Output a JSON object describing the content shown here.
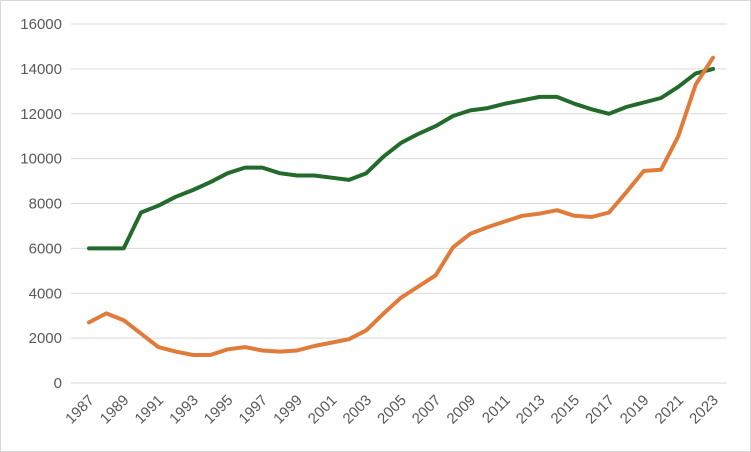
{
  "chart_data": {
    "type": "line",
    "title": "",
    "xlabel": "",
    "ylabel": "",
    "ylim": [
      0,
      16000
    ],
    "yticks": [
      "0",
      "2000",
      "4000",
      "6000",
      "8000",
      "10000",
      "12000",
      "14000",
      "16000"
    ],
    "grid": true,
    "legend": "none",
    "x": [
      1987,
      1988,
      1989,
      1990,
      1991,
      1992,
      1993,
      1994,
      1995,
      1996,
      1997,
      1998,
      1999,
      2000,
      2001,
      2002,
      2003,
      2004,
      2005,
      2006,
      2007,
      2008,
      2009,
      2010,
      2011,
      2012,
      2013,
      2014,
      2015,
      2016,
      2017,
      2018,
      2019,
      2020,
      2021,
      2022,
      2023
    ],
    "xticks": [
      "1987",
      "1989",
      "1991",
      "1993",
      "1995",
      "1997",
      "1999",
      "2001",
      "2003",
      "2005",
      "2007",
      "2009",
      "2011",
      "2013",
      "2015",
      "2017",
      "2019",
      "2021",
      "2023"
    ],
    "series": [
      {
        "name": "green series",
        "color": "#236b2b",
        "values": [
          6000,
          6000,
          6000,
          7600,
          7900,
          8300,
          8600,
          8950,
          9350,
          9600,
          9600,
          9350,
          9250,
          9250,
          9150,
          9050,
          9350,
          10100,
          10700,
          11100,
          11450,
          11900,
          12150,
          12250,
          12450,
          12600,
          12750,
          12750,
          12450,
          12200,
          12000,
          12300,
          12500,
          12700,
          13200,
          13800,
          14000
        ]
      },
      {
        "name": "orange series",
        "color": "#e07b39",
        "values": [
          2700,
          3100,
          2800,
          2200,
          1600,
          1400,
          1250,
          1250,
          1500,
          1600,
          1450,
          1400,
          1450,
          1650,
          1800,
          1950,
          2350,
          3100,
          3800,
          4300,
          4800,
          6050,
          6650,
          6950,
          7200,
          7450,
          7550,
          7700,
          7450,
          7400,
          7600,
          8500,
          9450,
          9500,
          11000,
          13300,
          14500
        ]
      }
    ]
  }
}
